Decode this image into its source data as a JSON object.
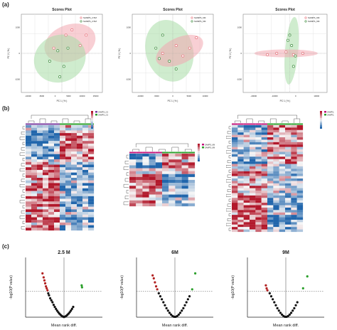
{
  "panels": {
    "a": "(a)",
    "b": "(b)",
    "c": "(c)"
  },
  "chart_data": [
    {
      "type": "scatter",
      "title": "Scores Plot",
      "xlabel": "PC 1 (  % )",
      "ylabel": "PC 2 (  % )",
      "xlim": [
        -20000,
        20000
      ],
      "ylim": [
        -1500,
        1500
      ],
      "legend": [
        "SAMPS_2.5M",
        "SAMPS_2.5M"
      ],
      "legend_placement": "top-right",
      "series": [
        {
          "color": "#e8707a",
          "points": [
            [
              -4000,
              200
            ],
            [
              2000,
              700
            ],
            [
              5000,
              900
            ],
            [
              9000,
              300
            ],
            [
              12000,
              700
            ]
          ]
        },
        {
          "color": "#3a8a3a",
          "points": [
            [
              -6000,
              -300
            ],
            [
              -2000,
              100
            ],
            [
              1000,
              -500
            ],
            [
              -1000,
              -900
            ],
            [
              3000,
              200
            ]
          ]
        }
      ],
      "ellipses": [
        {
          "color": "#f2a7b0",
          "cx": 4000,
          "cy": 400,
          "rx": 13000,
          "ry": 700,
          "angle": -20
        },
        {
          "color": "#a8dca6",
          "cx": -1000,
          "cy": -200,
          "rx": 13000,
          "ry": 900,
          "angle": -25
        }
      ],
      "xticks": [
        "-10000",
        "-5000",
        "0",
        "5000",
        "10000",
        "15000"
      ],
      "yticks": [
        "1000",
        "0",
        "-1000"
      ]
    },
    {
      "type": "scatter",
      "title": "Scores Plot",
      "xlabel": "PC 1 (  % )",
      "ylabel": "PC 2 (  % )",
      "xlim": [
        -12000,
        12000
      ],
      "ylim": [
        -1500,
        1500
      ],
      "legend": [
        "SAMPS_6M",
        "SAMPS_6M"
      ],
      "legend_placement": "top-right",
      "series": [
        {
          "color": "#e8707a",
          "points": [
            [
              -3000,
              0
            ],
            [
              1000,
              300
            ],
            [
              3000,
              -100
            ],
            [
              5000,
              200
            ],
            [
              7000,
              600
            ]
          ]
        },
        {
          "color": "#3a8a3a",
          "points": [
            [
              -5000,
              200
            ],
            [
              -3000,
              700
            ],
            [
              -1000,
              -300
            ],
            [
              1000,
              -600
            ],
            [
              -4000,
              -200
            ]
          ]
        }
      ],
      "ellipses": [
        {
          "color": "#a8dca6",
          "cx": -1000,
          "cy": 100,
          "rx": 7000,
          "ry": 1200,
          "angle": -15
        },
        {
          "color": "#f2a7b0",
          "cx": 2000,
          "cy": 100,
          "rx": 7500,
          "ry": 500,
          "angle": -25
        }
      ],
      "xticks": [
        "-10000",
        "-5000",
        "0",
        "5000",
        "10000"
      ],
      "yticks": [
        "1000",
        "0",
        "-1000"
      ]
    },
    {
      "type": "scatter",
      "title": "Scores Plot",
      "xlabel": "PC 1 (  % )",
      "ylabel": "PC 2 (  % )",
      "xlim": [
        -25000,
        20000
      ],
      "ylim": [
        -1500,
        1500
      ],
      "legend": [
        "SAMPS_9M",
        "SAMPS_9M"
      ],
      "legend_placement": "top-right",
      "series": [
        {
          "color": "#e8707a",
          "points": [
            [
              -12000,
              -50
            ],
            [
              -7000,
              0
            ],
            [
              -2000,
              50
            ],
            [
              2000,
              -50
            ],
            [
              7000,
              0
            ]
          ]
        },
        {
          "color": "#3a8a3a",
          "points": [
            [
              0,
              700
            ],
            [
              1000,
              300
            ],
            [
              3000,
              -100
            ],
            [
              2000,
              -500
            ],
            [
              -1000,
              500
            ]
          ]
        }
      ],
      "ellipses": [
        {
          "color": "#a8dca6",
          "cx": 1000,
          "cy": 100,
          "rx": 3500,
          "ry": 1300,
          "angle": 5
        },
        {
          "color": "#f2a7b0",
          "cx": -2000,
          "cy": 0,
          "rx": 17000,
          "ry": 150,
          "angle": 0
        }
      ],
      "xticks": [
        "-20000",
        "-10000",
        "0",
        "10000"
      ],
      "yticks": [
        "1000",
        "0",
        "-1000"
      ]
    },
    {
      "type": "scatter",
      "title": "2.5 M",
      "xlabel": "Mean rank diff.",
      "ylabel": "-log10(P value)",
      "xlim": [
        -10,
        10
      ],
      "ylim": [
        0,
        3
      ],
      "threshold": 1.3,
      "series": [
        {
          "color": "#b22222",
          "points": [
            [
              -5.6,
              2.2
            ],
            [
              -5.3,
              2.0
            ],
            [
              -5.1,
              1.85
            ],
            [
              -4.9,
              1.7
            ],
            [
              -4.7,
              1.55
            ],
            [
              -4.5,
              1.45
            ],
            [
              -4.3,
              1.35
            ]
          ]
        },
        {
          "color": "#2ca02c",
          "points": [
            [
              4.6,
              1.6
            ],
            [
              4.7,
              1.5
            ]
          ]
        },
        {
          "color": "#111111",
          "points": [
            [
              -4.1,
              1.2
            ],
            [
              -3.9,
              1.1
            ],
            [
              -3.6,
              0.95
            ],
            [
              -3.3,
              0.85
            ],
            [
              -3.0,
              0.75
            ],
            [
              -2.7,
              0.62
            ],
            [
              -2.4,
              0.52
            ],
            [
              -2.1,
              0.42
            ],
            [
              -1.8,
              0.33
            ],
            [
              -1.5,
              0.25
            ],
            [
              -1.2,
              0.18
            ],
            [
              -0.9,
              0.12
            ],
            [
              -0.6,
              0.07
            ],
            [
              -0.3,
              0.03
            ],
            [
              0,
              0.01
            ],
            [
              0.3,
              0.03
            ],
            [
              0.6,
              0.07
            ],
            [
              0.9,
              0.12
            ],
            [
              1.2,
              0.18
            ],
            [
              1.5,
              0.25
            ],
            [
              1.8,
              0.33
            ],
            [
              2.1,
              0.42
            ],
            [
              2.4,
              0.52
            ]
          ]
        }
      ]
    },
    {
      "type": "scatter",
      "title": "6M",
      "xlabel": "Mean rank diff.",
      "ylabel": "-log10(P value)",
      "xlim": [
        -10,
        10
      ],
      "ylim": [
        0,
        3
      ],
      "threshold": 1.3,
      "series": [
        {
          "color": "#b22222",
          "points": [
            [
              -5.8,
              2.1
            ],
            [
              -5.5,
              1.95
            ],
            [
              -5.2,
              1.75
            ],
            [
              -4.9,
              1.55
            ],
            [
              -4.6,
              1.4
            ]
          ]
        },
        {
          "color": "#2ca02c",
          "points": [
            [
              5.3,
              2.2
            ],
            [
              4.5,
              1.4
            ]
          ]
        },
        {
          "color": "#111111",
          "points": [
            [
              -4.2,
              1.2
            ],
            [
              -3.8,
              1.05
            ],
            [
              -3.4,
              0.9
            ],
            [
              -3.0,
              0.75
            ],
            [
              -2.6,
              0.6
            ],
            [
              -2.2,
              0.45
            ],
            [
              -1.8,
              0.33
            ],
            [
              -1.4,
              0.22
            ],
            [
              -1.0,
              0.13
            ],
            [
              -0.6,
              0.06
            ],
            [
              -0.2,
              0.02
            ],
            [
              0.2,
              0.02
            ],
            [
              0.6,
              0.06
            ],
            [
              1.0,
              0.13
            ],
            [
              1.4,
              0.22
            ],
            [
              1.8,
              0.33
            ],
            [
              2.2,
              0.45
            ],
            [
              2.6,
              0.6
            ],
            [
              3.0,
              0.75
            ],
            [
              3.4,
              0.9
            ],
            [
              3.8,
              1.05
            ]
          ]
        }
      ]
    },
    {
      "type": "scatter",
      "title": "9M",
      "xlabel": "Mean rank diff.",
      "ylabel": "-log10(P value)",
      "xlim": [
        -10,
        10
      ],
      "ylim": [
        0,
        3
      ],
      "threshold": 1.3,
      "series": [
        {
          "color": "#b22222",
          "points": [
            [
              -5.2,
              1.6
            ],
            [
              -5.0,
              1.45
            ],
            [
              -4.8,
              1.35
            ]
          ]
        },
        {
          "color": "#2ca02c",
          "points": [
            [
              5.6,
              2.05
            ],
            [
              4.5,
              1.45
            ]
          ]
        },
        {
          "color": "#111111",
          "points": [
            [
              -4.2,
              1.2
            ],
            [
              -3.8,
              1.05
            ],
            [
              -3.4,
              0.9
            ],
            [
              -3.0,
              0.75
            ],
            [
              -2.6,
              0.6
            ],
            [
              -2.2,
              0.45
            ],
            [
              -1.8,
              0.33
            ],
            [
              -1.4,
              0.22
            ],
            [
              -1.0,
              0.13
            ],
            [
              -0.6,
              0.06
            ],
            [
              -0.2,
              0.02
            ],
            [
              0.2,
              0.02
            ],
            [
              0.6,
              0.06
            ],
            [
              1.0,
              0.13
            ],
            [
              1.4,
              0.22
            ],
            [
              1.8,
              0.33
            ],
            [
              2.2,
              0.45
            ],
            [
              2.6,
              0.6
            ],
            [
              3.0,
              0.75
            ]
          ]
        }
      ]
    },
    {
      "type": "heatmap",
      "rows": 40,
      "cols": 12,
      "colorscale": [
        "#2166ac",
        "#f7f7f7",
        "#b2182b"
      ],
      "legend": [
        "SAMPS_2.5M",
        "SAMPS_2.5M"
      ],
      "group_colors": [
        "#7b3fa0",
        "#2ca02c"
      ]
    },
    {
      "type": "heatmap",
      "rows": 18,
      "cols": 10,
      "colorscale": [
        "#2166ac",
        "#f7f7f7",
        "#b2182b"
      ],
      "legend": [
        "SAMPS_6M",
        "SAMPS_6M"
      ],
      "group_colors": [
        "#c0147a",
        "#2ca02c"
      ]
    },
    {
      "type": "heatmap",
      "rows": 44,
      "cols": 12,
      "colorscale": [
        "#2166ac",
        "#f7f7f7",
        "#b2182b"
      ],
      "legend": [
        "SAMPS_9M",
        "SAMPS_9M"
      ],
      "group_colors": [
        "#c0147a",
        "#2ca02c"
      ]
    }
  ]
}
